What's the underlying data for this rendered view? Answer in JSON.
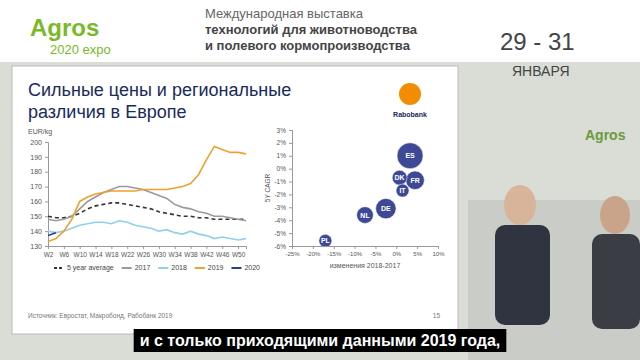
{
  "page": {
    "logo": "Agros",
    "logo_sub": "2020 expo",
    "header_lines": [
      "Международная выставка",
      "технологий для животноводства",
      "и полевого кормопроизводства"
    ],
    "dates": "29 - 31",
    "month": "ЯНВАРЯ",
    "wall_logo": "Agros",
    "slide_title": "Сильные цены и региональные различия в Европе",
    "brand": "Rabobank",
    "source": "Источник: Евростат, Макробонд, Рабобанк 2019",
    "page_number": "15",
    "caption": "и с только приходящими данными 2019 года,"
  },
  "chart_data": [
    {
      "type": "line",
      "y_label": "EUR/kg",
      "categories": [
        "W2",
        null,
        "W6",
        null,
        "W10",
        null,
        "W14",
        null,
        "W18",
        null,
        "W22",
        null,
        "W26",
        null,
        "W30",
        null,
        "W34",
        null,
        "W38",
        null,
        "W42",
        null,
        "W46",
        null,
        "W50",
        null
      ],
      "series": [
        {
          "name": "5 year average",
          "color": "#333333",
          "line_style": "dashed",
          "values": [
            150,
            149,
            149,
            150,
            152,
            155,
            157,
            158,
            159,
            159,
            158,
            157,
            156,
            155,
            153,
            152,
            151,
            150,
            150,
            149,
            149,
            148,
            148,
            148,
            148,
            148
          ]
        },
        {
          "name": "2017",
          "color": "#9a9a9a",
          "line_style": "solid",
          "values": [
            148,
            147,
            148,
            150,
            155,
            160,
            163,
            166,
            168,
            170,
            170,
            169,
            168,
            166,
            164,
            162,
            158,
            156,
            155,
            153,
            152,
            150,
            150,
            149,
            148,
            147
          ]
        },
        {
          "name": "2018",
          "color": "#8fd0ea",
          "line_style": "solid",
          "values": [
            140,
            139,
            140,
            142,
            144,
            145,
            146,
            146,
            145,
            147,
            146,
            144,
            143,
            142,
            140,
            141,
            139,
            138,
            140,
            138,
            137,
            135,
            136,
            135,
            134,
            135
          ]
        },
        {
          "name": "2019",
          "color": "#f0a030",
          "line_style": "solid",
          "values": [
            133,
            135,
            140,
            148,
            160,
            163,
            165,
            166,
            167,
            167,
            167,
            167,
            168,
            168,
            168,
            168,
            169,
            170,
            172,
            178,
            188,
            197,
            195,
            193,
            193,
            192
          ]
        },
        {
          "name": "2020",
          "color": "#2e3a8c",
          "line_style": "solid",
          "values": [
            137,
            139,
            null,
            null,
            null,
            null,
            null,
            null,
            null,
            null,
            null,
            null,
            null,
            null,
            null,
            null,
            null,
            null,
            null,
            null,
            null,
            null,
            null,
            null,
            null,
            null
          ]
        }
      ],
      "ylim": [
        130,
        200
      ],
      "yticks": [
        130,
        140,
        150,
        160,
        170,
        180,
        190,
        200
      ],
      "grid": false,
      "legend": "bottom"
    },
    {
      "type": "scatter",
      "x_label": "изменения 2018-2017",
      "y_label": "5Y CAGR",
      "labels": [
        "ES",
        "FR",
        "DK",
        "IT",
        "DE",
        "NL",
        "PL"
      ],
      "x": [
        3.3,
        4.5,
        0.8,
        1.5,
        -2.5,
        -7.5,
        -17
      ],
      "values": [
        1,
        -0.9,
        -0.7,
        -1.7,
        -3.1,
        -3.6,
        -5.6
      ],
      "sizes": [
        14,
        10,
        8,
        7,
        11,
        9,
        7
      ],
      "color": "#2e3a8c",
      "marker": "circle",
      "xlim": [
        -25,
        10
      ],
      "xticks": [
        {
          "value": -25,
          "label": "-25%"
        },
        {
          "value": -20,
          "label": "-20%"
        },
        {
          "value": -15,
          "label": "-15%"
        },
        {
          "value": -10,
          "label": "-10%"
        },
        {
          "value": -5,
          "label": "-5%"
        },
        {
          "value": 0,
          "label": "0%"
        },
        {
          "value": 5,
          "label": "5%"
        },
        {
          "value": 10,
          "label": "10%"
        }
      ],
      "ylim": [
        -6,
        3
      ],
      "yticks": [
        {
          "value": -6,
          "label": "-6%"
        },
        {
          "value": -5,
          "label": "-5%"
        },
        {
          "value": -4,
          "label": "-4%"
        },
        {
          "value": -3,
          "label": "-3%"
        },
        {
          "value": -2,
          "label": "-2%"
        },
        {
          "value": -1,
          "label": "-1%"
        },
        {
          "value": 0,
          "label": "0%"
        },
        {
          "value": 1,
          "label": "1%"
        },
        {
          "value": 2,
          "label": "2%"
        },
        {
          "value": 3,
          "label": "3%"
        }
      ],
      "grid": false
    }
  ]
}
